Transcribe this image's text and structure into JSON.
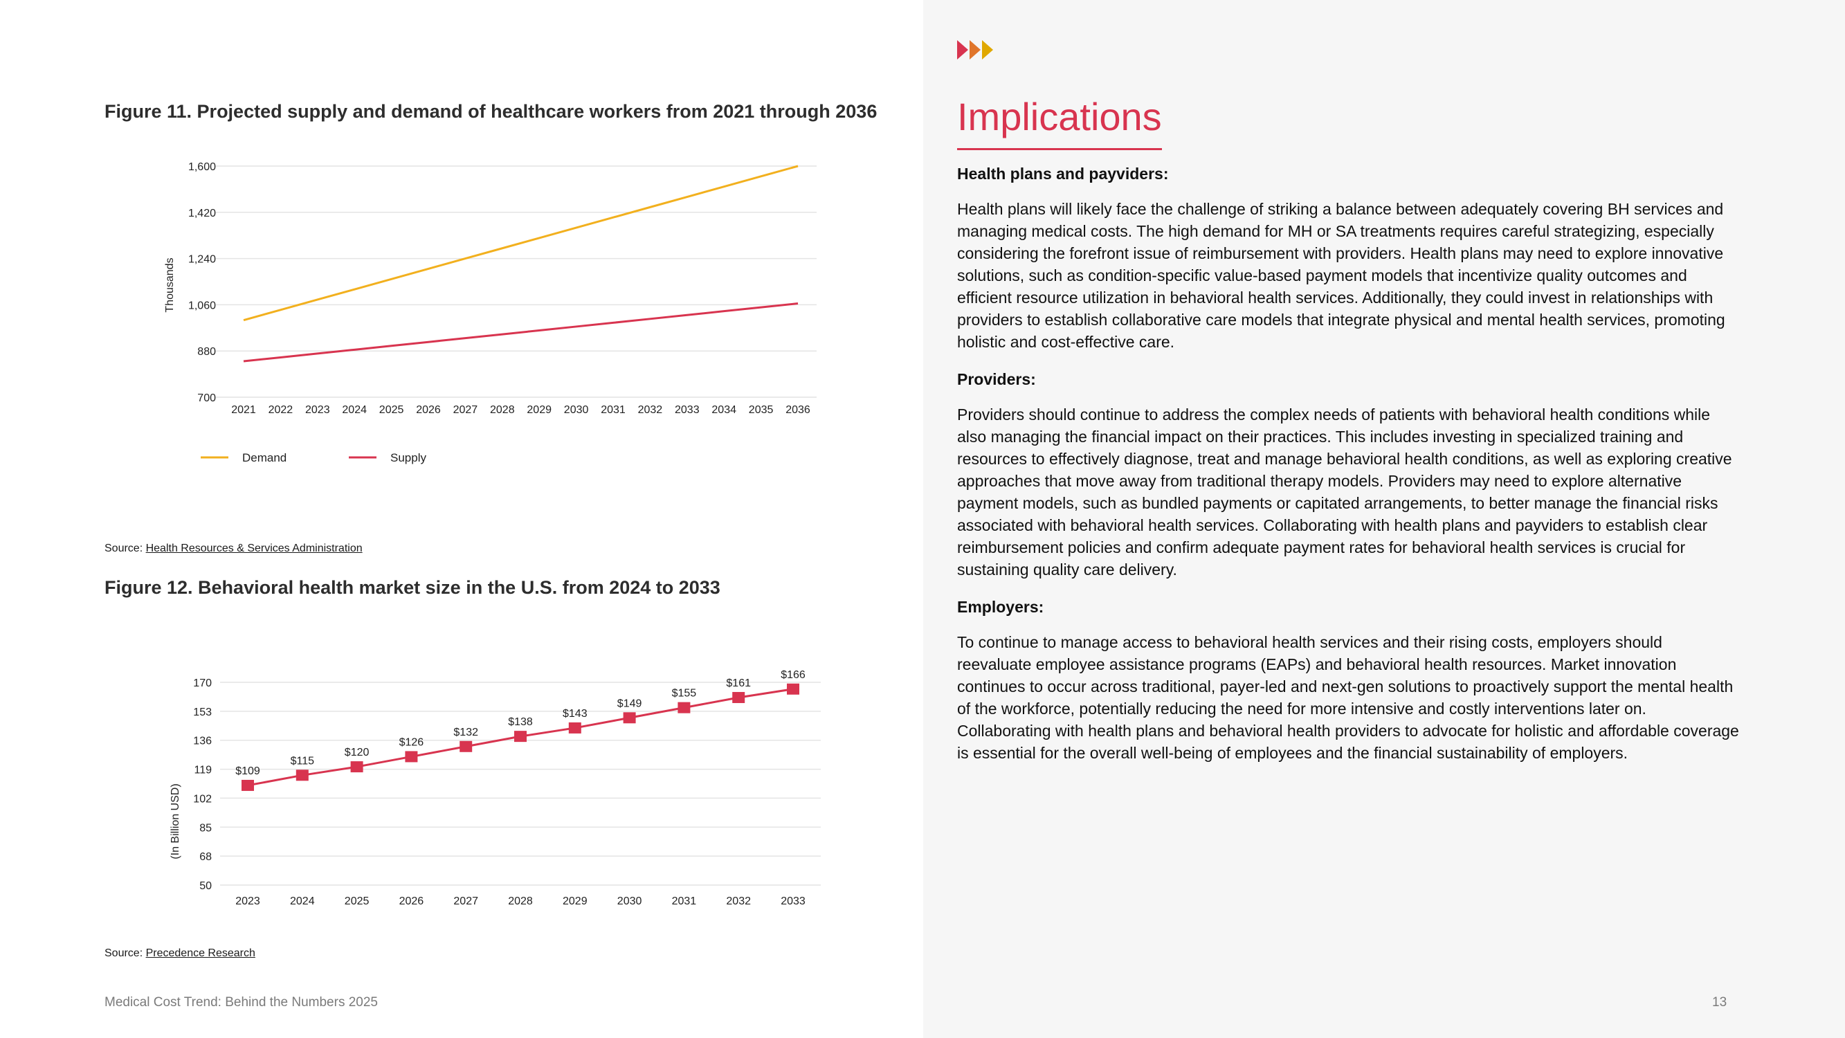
{
  "figure11": {
    "title": "Figure 11. Projected supply and demand of healthcare workers from 2021 through 2036",
    "source_prefix": "Source: ",
    "source_link": "Health Resources & Services Administration "
  },
  "figure12": {
    "title": "Figure 12. Behavioral health market size in the U.S. from 2024 to 2033",
    "source_prefix": "Source: ",
    "source_link": "Precedence Research"
  },
  "chart_data": [
    {
      "type": "line",
      "title": "Figure 11. Projected supply and demand of healthcare workers from 2021 through 2036",
      "xlabel": "",
      "ylabel": "Thousands",
      "x": [
        "2021",
        "2022",
        "2023",
        "2024",
        "2025",
        "2026",
        "2027",
        "2028",
        "2029",
        "2030",
        "2031",
        "2032",
        "2033",
        "2034",
        "2035",
        "2036"
      ],
      "ylim": [
        700,
        1600
      ],
      "yticks": [
        "1,600",
        "1,420",
        "1,240",
        "1,060",
        "880",
        "700"
      ],
      "series": [
        {
          "name": "Demand",
          "color": "#f2b01e",
          "values": [
            1000,
            1040,
            1080,
            1120,
            1160,
            1200,
            1240,
            1280,
            1320,
            1360,
            1400,
            1440,
            1480,
            1520,
            1560,
            1600
          ]
        },
        {
          "name": "Supply",
          "color": "#d8344f",
          "values": [
            840,
            855,
            870,
            885,
            900,
            915,
            930,
            945,
            960,
            975,
            990,
            1005,
            1020,
            1035,
            1050,
            1065
          ]
        }
      ],
      "grid": true,
      "legend": "bottom-left"
    },
    {
      "type": "line",
      "title": "Figure 12. Behavioral health market size in the U.S. from 2024 to 2033",
      "xlabel": "",
      "ylabel": "(In Billion USD)",
      "x": [
        "2023",
        "2024",
        "2025",
        "2026",
        "2027",
        "2028",
        "2029",
        "2030",
        "2031",
        "2032",
        "2033"
      ],
      "ylim": [
        50,
        170
      ],
      "yticks": [
        "170",
        "153",
        "136",
        "119",
        "102",
        "85",
        "68",
        "50"
      ],
      "series": [
        {
          "name": "",
          "color": "#d8344f",
          "values": [
            109,
            115,
            120,
            126,
            132,
            138,
            143,
            149,
            155,
            161,
            166
          ],
          "labels": [
            "$109",
            "$115",
            "$120",
            "$126",
            "$132",
            "$138",
            "$143",
            "$149",
            "$155",
            "$161",
            "$166"
          ]
        }
      ],
      "grid": true
    }
  ],
  "implications": {
    "title": "Implications",
    "sections": [
      {
        "heading": "Health plans and payviders:",
        "body": "Health plans will likely face the challenge of striking a balance between adequately covering BH services and managing medical costs. The high demand for MH or SA treatments requires careful strategizing, especially considering the forefront issue of reimbursement with providers. Health plans may need to explore innovative solutions, such as condition-specific value-based payment models that incentivize quality outcomes and efficient resource utilization in behavioral health services. Additionally, they could invest in relationships with providers to establish collaborative care models that integrate physical and mental health services, promoting holistic and cost-effective care."
      },
      {
        "heading": "Providers:",
        "body": "Providers should continue to address the complex needs of patients with behavioral health conditions while also managing the financial impact on their practices. This includes investing in specialized training and resources to effectively diagnose, treat and manage behavioral health conditions, as well as exploring creative approaches that move away from traditional therapy models. Providers may need to explore alternative payment models, such as bundled payments or capitated arrangements, to better manage the financial risks associated with behavioral health services. Collaborating with health plans and payviders to establish clear reimbursement policies and confirm adequate payment rates for behavioral health services is crucial for sustaining quality care delivery."
      },
      {
        "heading": "Employers:",
        "body": "To continue to manage access to behavioral health services and their rising costs, employers should reevaluate employee assistance programs (EAPs) and behavioral health resources. Market innovation continues to occur across traditional, payer-led and next-gen solutions to proactively support the mental health of the workforce, potentially reducing the need for more intensive and costly interventions later on. Collaborating with health plans and behavioral health providers to advocate for holistic and affordable coverage is essential for the overall well-being of employees and the financial sustainability of employers."
      }
    ]
  },
  "footer": {
    "left": "Medical Cost Trend: Behind the Numbers 2025",
    "page_number": "13"
  }
}
